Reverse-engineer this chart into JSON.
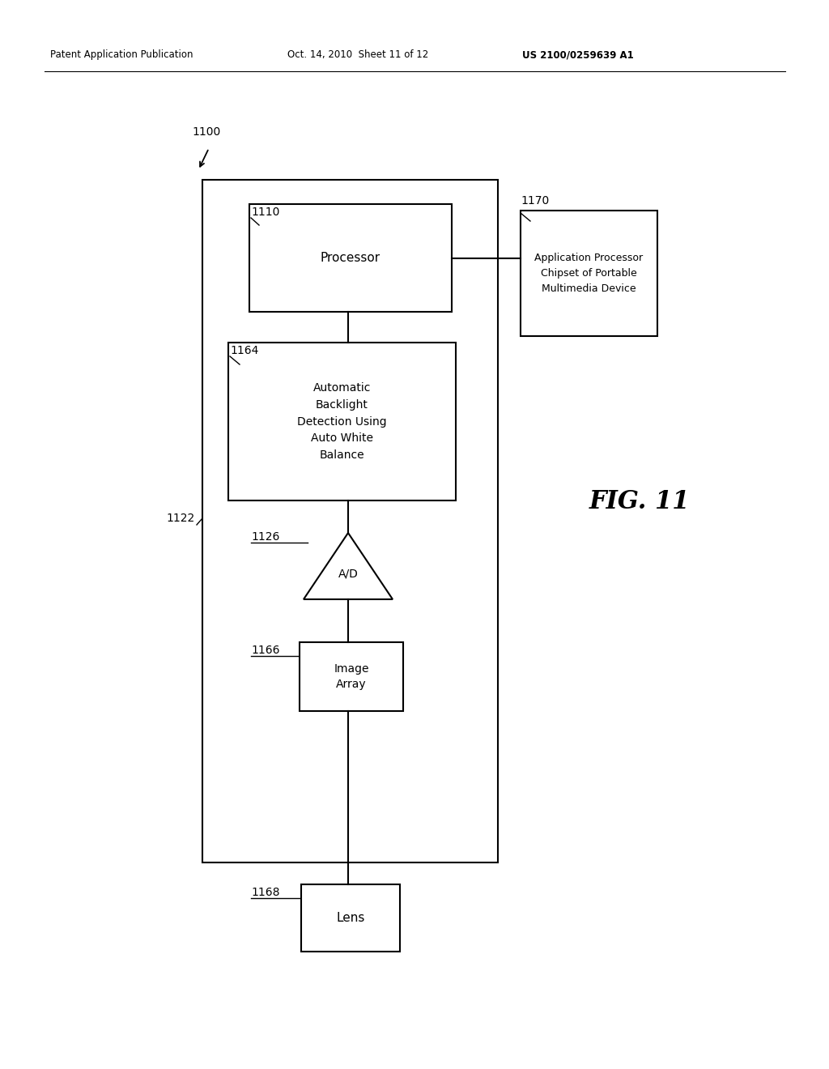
{
  "bg_color": "#ffffff",
  "header_left": "Patent Application Publication",
  "header_mid": "Oct. 14, 2010  Sheet 11 of 12",
  "header_right": "US 2100/0259639 A1",
  "fig_label": "FIG. 11",
  "label_1100": "1100",
  "label_1122": "1122",
  "label_1110": "1110",
  "label_1164": "1164",
  "label_1126": "1126",
  "label_1166": "1166",
  "label_1168": "1168",
  "label_1170": "1170",
  "box_processor_text": "Processor",
  "box_abd_text": "Automatic\nBacklight\nDetection Using\nAuto White\nBalance",
  "box_image_array_text": "Image\nArray",
  "box_lens_text": "Lens",
  "box_app_proc_text": "Application Processor\nChipset of Portable\nMultimedia Device",
  "ad_text": "A/D"
}
